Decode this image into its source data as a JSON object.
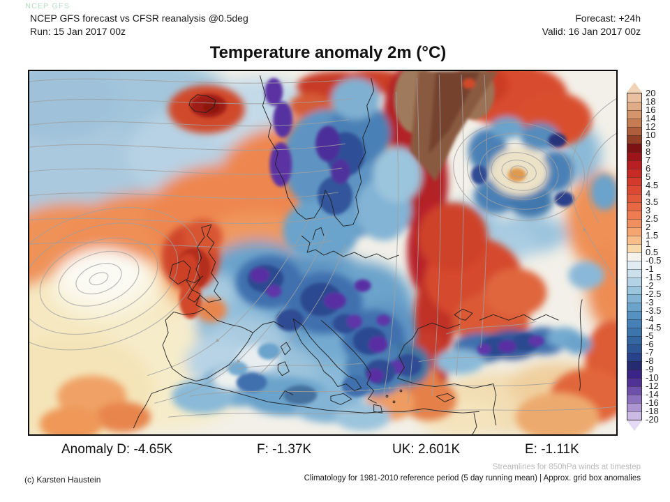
{
  "watermark": "NCEP GFS",
  "header": {
    "model_line": "NCEP GFS forecast vs CFSR reanalysis @0.5deg",
    "run_line": "Run: 15 Jan 2017 00z",
    "forecast_line": "Forecast: +24h",
    "valid_line": "Valid: 16 Jan 2017 00z"
  },
  "title": "Temperature anomaly 2m (°C)",
  "colorbar": {
    "labels": [
      "20",
      "18",
      "16",
      "14",
      "12",
      "10",
      "9",
      "8",
      "7",
      "6",
      "5",
      "4.5",
      "4",
      "3.5",
      "3",
      "2.5",
      "2",
      "1.5",
      "1",
      "0.5",
      "-0.5",
      "-1",
      "-1.5",
      "-2",
      "-2.5",
      "-3",
      "-3.5",
      "-4",
      "-4.5",
      "-5",
      "-6",
      "-7",
      "-8",
      "-9",
      "-10",
      "-12",
      "-14",
      "-16",
      "-18",
      "-20"
    ],
    "cell_colors": [
      "#e9c0a0",
      "#dfac87",
      "#d4946c",
      "#c67c53",
      "#ae5e3c",
      "#933f28",
      "#7c1214",
      "#9d151a",
      "#b71f22",
      "#c82b25",
      "#d33a2c",
      "#db4933",
      "#e2583b",
      "#e86845",
      "#ee7c50",
      "#f28f5e",
      "#f6a571",
      "#f9bd89",
      "#f8d9ab",
      "#f4f2ea",
      "#e1ecf2",
      "#ccdfec",
      "#b4d2e5",
      "#9bc4dd",
      "#83b4d5",
      "#6ba3cb",
      "#5692c1",
      "#4581b6",
      "#3c74ac",
      "#3467a2",
      "#2d5697",
      "#28418b",
      "#242b70",
      "#3a2485",
      "#503297",
      "#6c50a9",
      "#8b71bd",
      "#ac95d1",
      "#cabae4"
    ],
    "top_cap_color": "#f2d3b6",
    "bottom_cap_color": "#e4daf3"
  },
  "anomaly_summary": {
    "d": "Anomaly D: -4.65K",
    "f": "F: -1.37K",
    "uk": "UK: 2.601K",
    "e": "E: -1.11K"
  },
  "footer": {
    "streamline_note": "Streamlines for 850hPa winds at timestep",
    "climatology_note": "Climatology for 1981-2010 reference period (5 day running mean) | Approx. grid box anomalies",
    "copyright": "(c) Karsten Haustein"
  },
  "colors": {
    "streamline": "#a0a0a0",
    "coastline": "#1f1f1f",
    "note_gray": "#b9b9b9"
  }
}
